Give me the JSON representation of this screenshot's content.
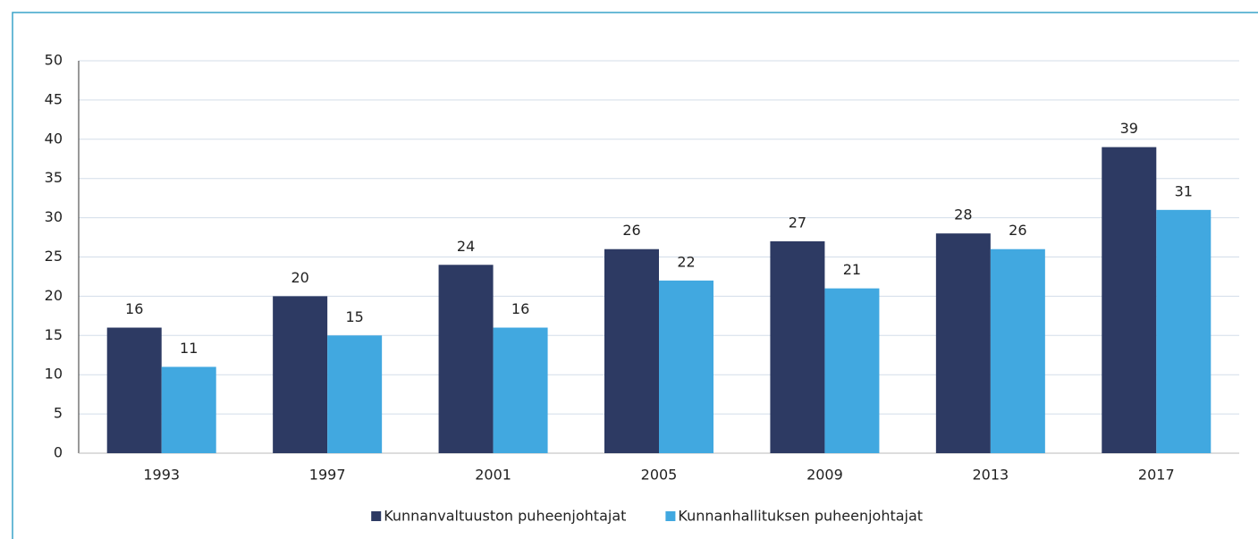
{
  "chart_data": {
    "type": "bar",
    "categories": [
      "1993",
      "1997",
      "2001",
      "2005",
      "2009",
      "2013",
      "2017"
    ],
    "series": [
      {
        "name": "Kunnanvaltuuston puheenjohtajat",
        "color": "#2d3a63",
        "values": [
          16,
          20,
          24,
          26,
          27,
          28,
          39
        ]
      },
      {
        "name": "Kunnanhallituksen puheenjohtajat",
        "color": "#41a8e0",
        "values": [
          11,
          15,
          16,
          22,
          21,
          26,
          31
        ]
      }
    ],
    "ylim": [
      0,
      50
    ],
    "yticks": [
      0,
      5,
      10,
      15,
      20,
      25,
      30,
      35,
      40,
      45,
      50
    ],
    "grid": true,
    "legend": "bottom"
  }
}
